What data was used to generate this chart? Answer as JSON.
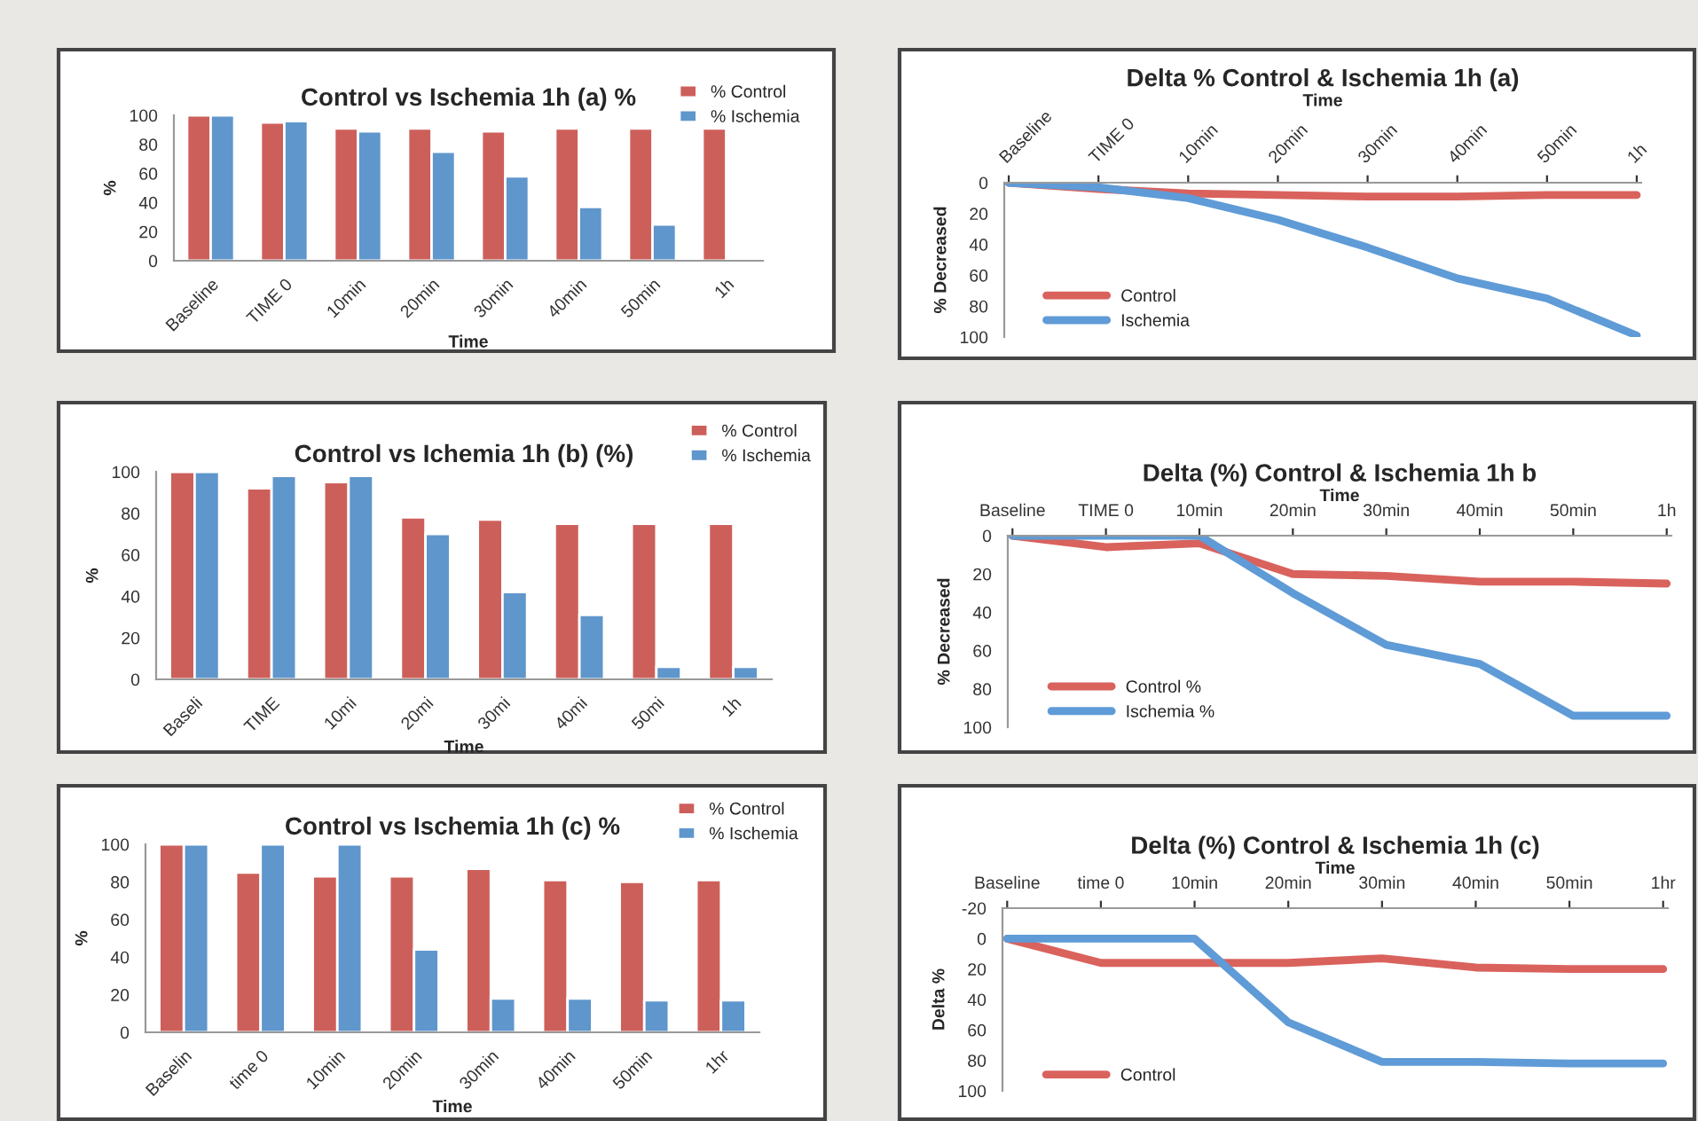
{
  "chart_data": [
    {
      "type": "bar",
      "title": "Control vs Ischemia 1h (a) %",
      "xlabel": "Time",
      "ylabel": "%",
      "categories": [
        "Baseline",
        "TIME 0",
        "10min",
        "20min",
        "30min",
        "40min",
        "50min",
        "1h"
      ],
      "series": [
        {
          "name": "% Control",
          "color": "#cd5f5a",
          "values": [
            100,
            95,
            91,
            91,
            89,
            91,
            91,
            91
          ]
        },
        {
          "name": "% Ischemia",
          "color": "#5f96cc",
          "values": [
            100,
            96,
            89,
            75,
            58,
            37,
            25,
            null
          ]
        }
      ],
      "ylim": [
        0,
        100
      ],
      "yticks": [
        0,
        20,
        40,
        60,
        80,
        100
      ],
      "legend": "top right"
    },
    {
      "type": "line",
      "title": "Delta % Control & Ischemia 1h (a)",
      "xlabel": "Time",
      "ylabel": "% Decreased",
      "categories": [
        "Baseline",
        "TIME 0",
        "10min",
        "20min",
        "30min",
        "40min",
        "50min",
        "1h"
      ],
      "series": [
        {
          "name": "Control",
          "color": "#d9625d",
          "values": [
            0,
            4,
            7,
            8,
            9,
            9,
            8,
            8
          ]
        },
        {
          "name": "Ischemia",
          "color": "#5f9bd6",
          "values": [
            0,
            3,
            10,
            24,
            42,
            62,
            75,
            99
          ]
        }
      ],
      "ylim": [
        100,
        0
      ],
      "yticks": [
        0,
        20,
        40,
        60,
        80,
        100
      ],
      "legend": "bottom left"
    },
    {
      "type": "bar",
      "title": "Control vs Ichemia 1h (b) (%)",
      "xlabel": "Time",
      "ylabel": "%",
      "categories": [
        "Baseli",
        "TIME",
        "10mi",
        "20mi",
        "30mi",
        "40mi",
        "50mi",
        "1h"
      ],
      "series": [
        {
          "name": "% Control",
          "color": "#cd5f5a",
          "values": [
            100,
            92,
            95,
            78,
            77,
            75,
            75,
            75
          ]
        },
        {
          "name": "% Ischemia",
          "color": "#5f96cc",
          "values": [
            100,
            98,
            98,
            70,
            42,
            31,
            6,
            6
          ]
        }
      ],
      "ylim": [
        0,
        100
      ],
      "yticks": [
        0,
        20,
        40,
        60,
        80,
        100
      ],
      "legend": "top right"
    },
    {
      "type": "line",
      "title": "Delta (%) Control & Ischemia 1h b",
      "xlabel": "Time",
      "ylabel": "% Decreased",
      "categories": [
        "Baseline",
        "TIME 0",
        "10min",
        "20min",
        "30min",
        "40min",
        "50min",
        "1h"
      ],
      "series": [
        {
          "name": "Control %",
          "color": "#d9625d",
          "values": [
            0,
            6,
            4,
            20,
            21,
            24,
            24,
            25
          ]
        },
        {
          "name": "Ischemia %",
          "color": "#5f9bd6",
          "values": [
            0,
            0,
            0,
            30,
            57,
            67,
            94,
            94
          ]
        }
      ],
      "ylim": [
        100,
        0
      ],
      "yticks": [
        0,
        20,
        40,
        60,
        80,
        100
      ],
      "legend": "bottom left"
    },
    {
      "type": "bar",
      "title": "Control vs Ischemia 1h (c) %",
      "xlabel": "Time",
      "ylabel": "%",
      "categories": [
        "Baselin",
        "time 0",
        "10min",
        "20min",
        "30min",
        "40min",
        "50min",
        "1hr"
      ],
      "series": [
        {
          "name": "% Control",
          "color": "#cd5f5a",
          "values": [
            100,
            85,
            83,
            83,
            87,
            81,
            80,
            81
          ]
        },
        {
          "name": "% Ischemia",
          "color": "#5f96cc",
          "values": [
            100,
            100,
            100,
            44,
            18,
            18,
            17,
            17
          ]
        }
      ],
      "ylim": [
        0,
        100
      ],
      "yticks": [
        0,
        20,
        40,
        60,
        80,
        100
      ],
      "legend": "top right"
    },
    {
      "type": "line",
      "title": "Delta (%) Control & Ischemia 1h (c)",
      "xlabel": "Time",
      "ylabel": "Delta %",
      "categories": [
        "Baseline",
        "time 0",
        "10min",
        "20min",
        "30min",
        "40min",
        "50min",
        "1hr"
      ],
      "series": [
        {
          "name": "Control",
          "color": "#d9625d",
          "values": [
            0,
            16,
            16,
            16,
            13,
            19,
            20,
            20
          ]
        },
        {
          "color": "#5f9bd6",
          "values": [
            0,
            0,
            0,
            55,
            81,
            81,
            82,
            82
          ]
        }
      ],
      "ylim": [
        100,
        -20
      ],
      "yticks": [
        -20,
        0,
        20,
        40,
        60,
        80,
        100
      ],
      "legend": "bottom left"
    }
  ]
}
